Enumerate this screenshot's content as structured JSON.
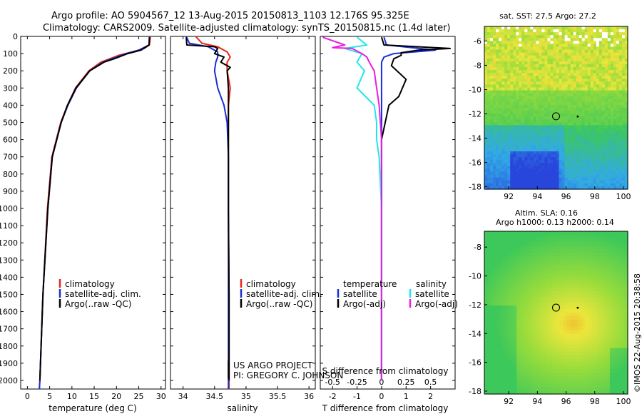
{
  "header": {
    "title_line1": "Argo profile: AO 5904567_12 13-Aug-2015 20150813_1103 12.176S 95.325E",
    "title_line2": "Climatology: CARS2009. Satellite-adjusted climatology: synTS_20150815.nc (1.4d later)"
  },
  "credits": {
    "project": "US ARGO PROJECT",
    "pi": "PI: GREGORY C. JOHNSON",
    "imos": "©IMOS 22-Aug-2015 20:38:58"
  },
  "colors": {
    "climatology": "#e8261c",
    "satellite": "#1a2fd6",
    "argo": "#000000",
    "satellite_s": "#23e6e6",
    "argo_s": "#e81ee0"
  },
  "chart_data": [
    {
      "type": "line",
      "id": "temperature",
      "xlabel": "temperature (deg C)",
      "ylabel": "",
      "xlim": [
        -1.5,
        31
      ],
      "ylim": [
        2050,
        0
      ],
      "xticks": [
        "0",
        "5",
        "10",
        "15",
        "20",
        "25",
        "30"
      ],
      "yticks": [
        "0",
        "100",
        "200",
        "300",
        "400",
        "500",
        "600",
        "700",
        "800",
        "900",
        "1000",
        "1100",
        "1200",
        "1300",
        "1400",
        "1500",
        "1600",
        "1700",
        "1800",
        "1900",
        "2000"
      ],
      "legend": [
        "climatology",
        "satellite-adj. clim.",
        "Argo(..raw -QC)"
      ],
      "series": [
        {
          "name": "climatology",
          "depth": [
            0,
            50,
            70,
            90,
            110,
            150,
            200,
            300,
            400,
            500,
            700,
            1000,
            1500,
            2000,
            2050
          ],
          "values": [
            27.6,
            27.4,
            26.2,
            23.5,
            20.5,
            16.5,
            13.8,
            10.8,
            9.0,
            7.5,
            5.5,
            4.5,
            3.5,
            2.8,
            2.7
          ]
        },
        {
          "name": "satellite-adj. clim.",
          "depth": [
            0,
            50,
            80,
            100,
            130,
            150,
            200,
            300,
            400,
            500,
            700,
            1000,
            1500,
            2000,
            2050
          ],
          "values": [
            27.4,
            27.3,
            25.0,
            22.2,
            19.0,
            17.0,
            14.0,
            11.0,
            9.1,
            7.6,
            5.6,
            4.6,
            3.5,
            2.8,
            2.7
          ]
        },
        {
          "name": "Argo(..raw -QC)",
          "depth": [
            5,
            50,
            80,
            100,
            130,
            150,
            200,
            300,
            400,
            500,
            700,
            1000,
            1500,
            2000
          ],
          "values": [
            27.4,
            27.3,
            25.5,
            22.5,
            19.5,
            17.2,
            14.0,
            10.9,
            9.0,
            7.6,
            5.6,
            4.6,
            3.5,
            2.8
          ]
        }
      ]
    },
    {
      "type": "line",
      "id": "salinity",
      "xlabel": "salinity",
      "ylabel": "",
      "xlim": [
        33.8,
        36.1
      ],
      "ylim": [
        2050,
        0
      ],
      "xticks": [
        "34",
        "34.5",
        "35",
        "35.5",
        "36"
      ],
      "legend": [
        "climatology",
        "satellite-adj. clim.",
        "Argo(..raw -QC)"
      ],
      "series": [
        {
          "name": "climatology",
          "depth": [
            0,
            40,
            60,
            90,
            120,
            150,
            200,
            300,
            400,
            500,
            700,
            1000,
            1500,
            2000,
            2050
          ],
          "values": [
            34.2,
            34.3,
            34.55,
            34.7,
            34.75,
            34.7,
            34.7,
            34.75,
            34.72,
            34.72,
            34.72,
            34.72,
            34.73,
            34.73,
            34.73
          ]
        },
        {
          "name": "satellite-adj. clim.",
          "depth": [
            0,
            40,
            60,
            90,
            120,
            150,
            200,
            300,
            400,
            500,
            700,
            1000,
            1500,
            2000,
            2050
          ],
          "values": [
            34.05,
            34.1,
            34.4,
            34.55,
            34.55,
            34.52,
            34.5,
            34.55,
            34.65,
            34.7,
            34.72,
            34.72,
            34.72,
            34.72,
            34.72
          ]
        },
        {
          "name": "Argo(..raw -QC)",
          "depth": [
            5,
            50,
            60,
            70,
            100,
            120,
            150,
            180,
            200,
            300,
            400,
            500,
            700,
            1000,
            1500,
            2000
          ],
          "values": [
            34.05,
            34.06,
            34.5,
            34.55,
            34.5,
            34.65,
            34.6,
            34.75,
            34.7,
            34.72,
            34.72,
            34.72,
            34.72,
            34.72,
            34.73,
            34.73
          ]
        }
      ]
    },
    {
      "type": "line",
      "id": "difference",
      "xlabel": "T difference from climatology",
      "xlabel_top": "S difference from climatology",
      "xlim": [
        -2.5,
        3
      ],
      "ylim": [
        2050,
        0
      ],
      "xticks": [
        "-2",
        "-1",
        "0",
        "1",
        "2"
      ],
      "xticks_top": [
        "-0.5",
        "-0.25",
        "0",
        "0.25",
        "0.5"
      ],
      "legend": {
        "temperature": "temperature",
        "salinity": "salinity",
        "sat": "satellite",
        "argo": "Argo(-adj)"
      },
      "series": [
        {
          "name": "temperature satellite",
          "depth": [
            5,
            50,
            80,
            100,
            120,
            150,
            200,
            300,
            400,
            600,
            1000,
            1500,
            2000
          ],
          "values": [
            0.1,
            0.2,
            2.2,
            0.5,
            0.1,
            0,
            0,
            0,
            0,
            0,
            0,
            0,
            0
          ]
        },
        {
          "name": "temperature Argo(-adj)",
          "depth": [
            5,
            50,
            70,
            80,
            95,
            110,
            130,
            170,
            250,
            350,
            400,
            600,
            1000,
            1500,
            2000
          ],
          "values": [
            0,
            0.1,
            2.8,
            1.5,
            0.8,
            0.8,
            0.5,
            0.4,
            1.0,
            0.7,
            0.3,
            0,
            0,
            0,
            0
          ]
        },
        {
          "name": "salinity satellite",
          "depth": [
            5,
            50,
            70,
            100,
            150,
            200,
            300,
            400,
            500,
            600,
            700,
            1000,
            1500,
            2000
          ],
          "values": [
            -1.0,
            -0.6,
            -1.5,
            -0.8,
            -1.0,
            -0.7,
            -1.0,
            -0.3,
            -0.2,
            -0.2,
            -0.1,
            0,
            0,
            0
          ]
        },
        {
          "name": "salinity Argo(-adj)",
          "depth": [
            5,
            50,
            65,
            70,
            100,
            120,
            150,
            200,
            300,
            400,
            600,
            1000,
            1500,
            2000
          ],
          "values": [
            -2.4,
            -1.5,
            -2.0,
            -1.2,
            -0.8,
            -0.6,
            -0.5,
            -0.3,
            -0.2,
            -0.1,
            0,
            0,
            0,
            0
          ]
        }
      ]
    },
    {
      "type": "heatmap",
      "id": "sst",
      "title": "sat. SST: 27.5 Argo: 27.2",
      "xlim": [
        90.3,
        100.3
      ],
      "ylim": [
        -18.2,
        -4.8
      ],
      "xticks": [
        "92",
        "94",
        "96",
        "98",
        "100"
      ],
      "yticks": [
        "-6",
        "-8",
        "-10",
        "-12",
        "-14",
        "-16",
        "-18"
      ],
      "argo_position": [
        95.3,
        -12.2
      ]
    },
    {
      "type": "heatmap",
      "id": "sla",
      "title": "Altim. SLA: 0.16",
      "subtitle": "Argo h1000: 0.13 h2000: 0.14",
      "xlim": [
        90.3,
        100.3
      ],
      "ylim": [
        -18.2,
        -6.9
      ],
      "xticks": [
        "92",
        "94",
        "96",
        "98",
        "100"
      ],
      "yticks": [
        "-8",
        "-10",
        "-12",
        "-14",
        "-16",
        "-18"
      ],
      "argo_position": [
        95.3,
        -12.2
      ]
    }
  ]
}
